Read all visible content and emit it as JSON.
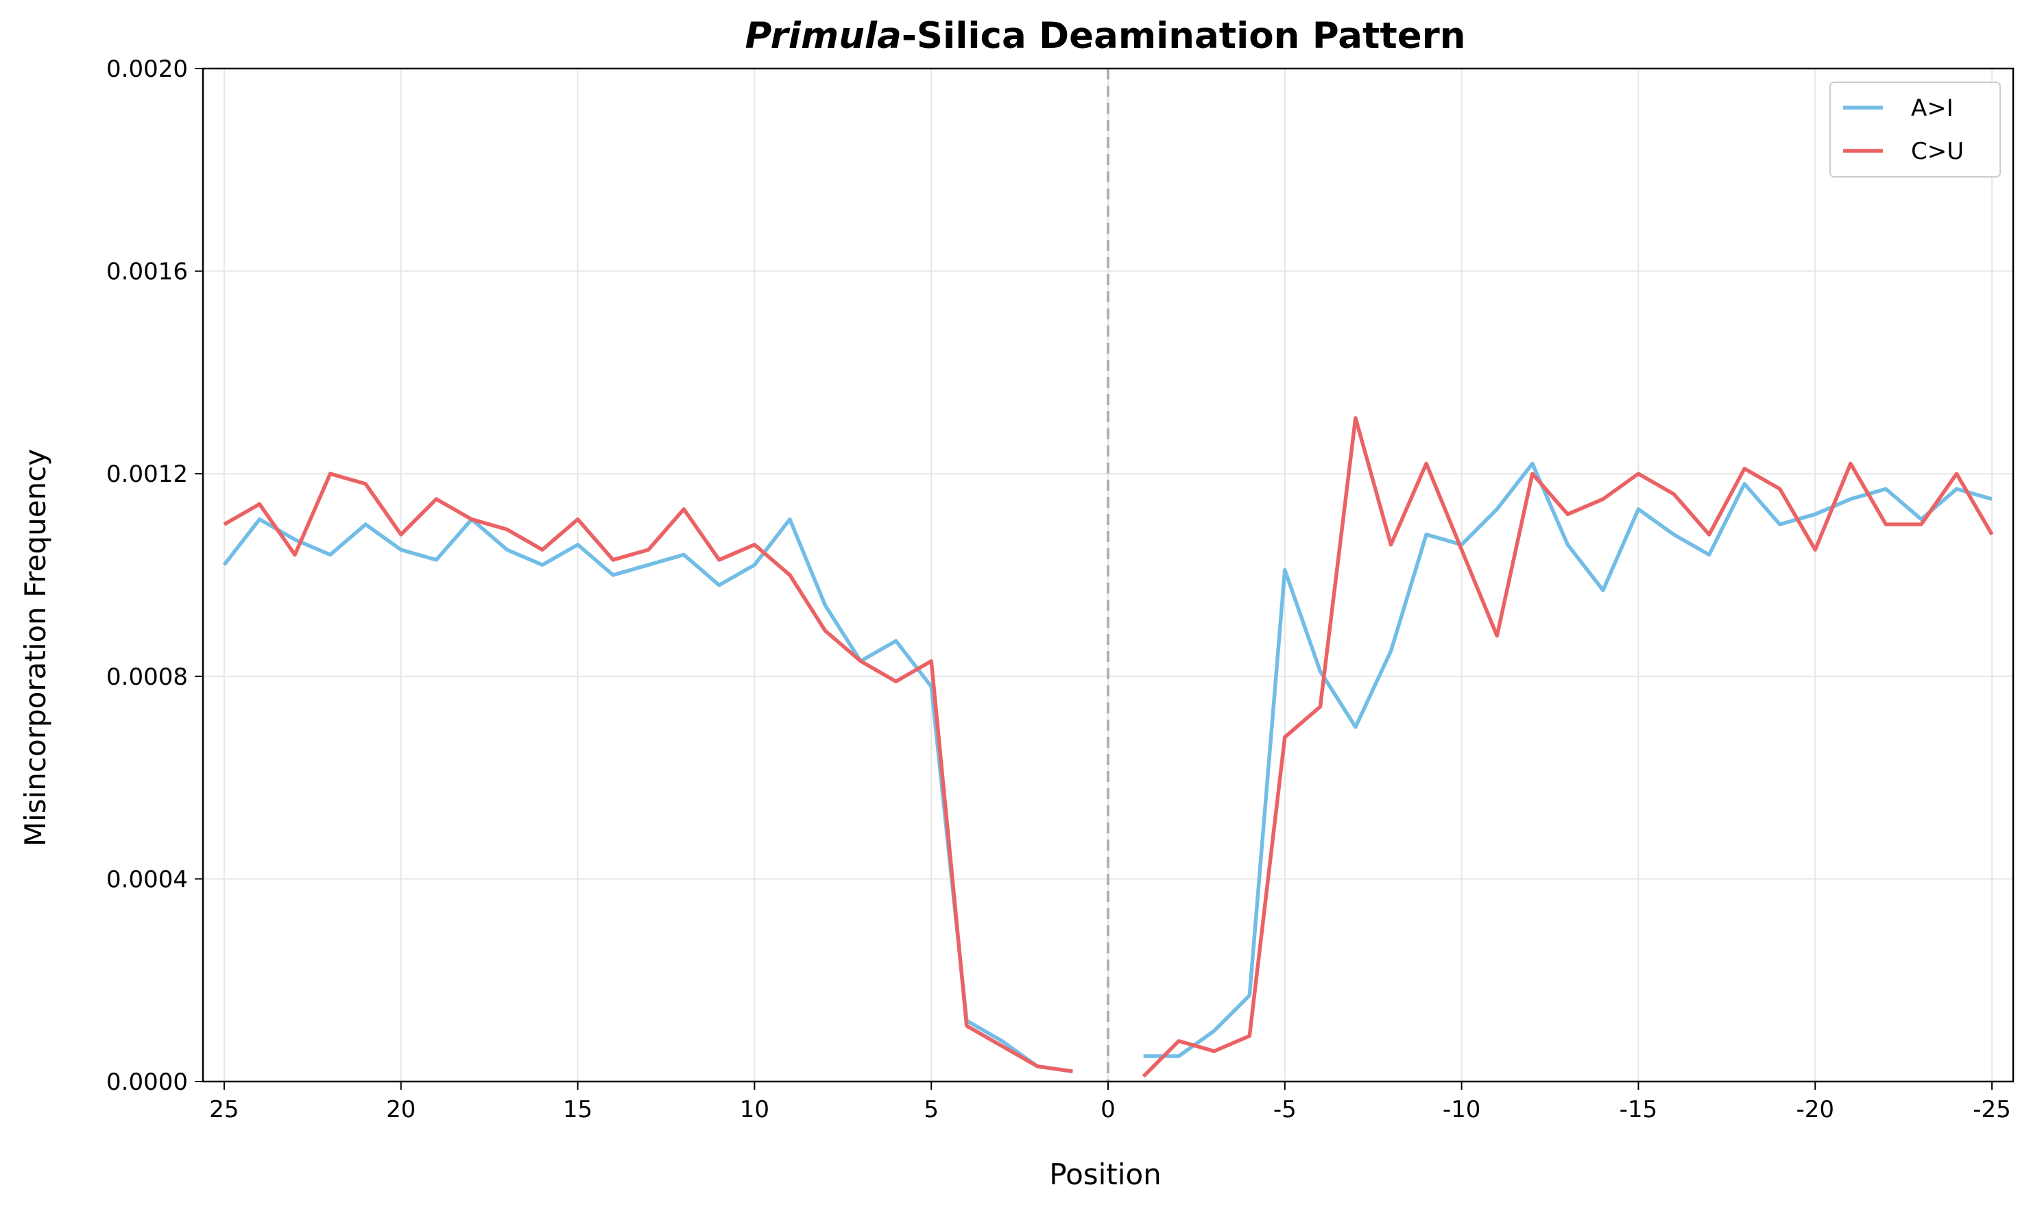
{
  "chart_data": {
    "type": "line",
    "title_italic": "Primula",
    "title_rest": "-Silica Deamination Pattern",
    "xlabel": "Position",
    "ylabel": "Misincorporation Frequency",
    "xlim": [
      25.6,
      -25.6
    ],
    "ylim": [
      0,
      0.002
    ],
    "x_ticks": [
      25,
      20,
      15,
      10,
      5,
      0,
      -5,
      -10,
      -15,
      -20,
      -25
    ],
    "x_tick_labels": [
      "25",
      "20",
      "15",
      "10",
      "5",
      "0",
      "-5",
      "-10",
      "-15",
      "-20",
      "-25"
    ],
    "y_ticks": [
      0,
      0.0004,
      0.0008,
      0.0012,
      0.0016,
      0.002
    ],
    "y_tick_labels": [
      "0.0000",
      "0.0004",
      "0.0008",
      "0.0012",
      "0.0016",
      "0.0020"
    ],
    "grid": true,
    "center_line": {
      "x": 0,
      "style": "dashed",
      "color": "#b0b0b0"
    },
    "legend": {
      "placement": "top-right"
    },
    "series": [
      {
        "name": "A>I",
        "color": "#72bde6",
        "segments": [
          {
            "x": [
              25,
              24,
              23,
              22,
              21,
              20,
              19,
              18,
              17,
              16,
              15,
              14,
              13,
              12,
              11,
              10,
              9,
              8,
              7,
              6,
              5,
              4,
              3,
              2,
              1
            ],
            "y": [
              0.00102,
              0.00111,
              0.00107,
              0.00104,
              0.0011,
              0.00105,
              0.00103,
              0.00111,
              0.00105,
              0.00102,
              0.00106,
              0.001,
              0.00102,
              0.00104,
              0.00098,
              0.00102,
              0.00111,
              0.00094,
              0.00083,
              0.00087,
              0.00078,
              0.00012,
              8e-05,
              3e-05,
              2e-05
            ]
          },
          {
            "x": [
              -1,
              -2,
              -3,
              -4,
              -5,
              -6,
              -7,
              -8,
              -9,
              -10,
              -11,
              -12,
              -13,
              -14,
              -15,
              -16,
              -17,
              -18,
              -19,
              -20,
              -21,
              -22,
              -23,
              -24,
              -25
            ],
            "y": [
              5e-05,
              5e-05,
              0.0001,
              0.00017,
              0.00101,
              0.00081,
              0.0007,
              0.00085,
              0.00108,
              0.00106,
              0.00113,
              0.00122,
              0.00106,
              0.00097,
              0.00113,
              0.00108,
              0.00104,
              0.00118,
              0.0011,
              0.00112,
              0.00115,
              0.00117,
              0.00111,
              0.00117,
              0.00115
            ]
          }
        ]
      },
      {
        "name": "C>U",
        "color": "#eb6264",
        "segments": [
          {
            "x": [
              25,
              24,
              23,
              22,
              21,
              20,
              19,
              18,
              17,
              16,
              15,
              14,
              13,
              12,
              11,
              10,
              9,
              8,
              7,
              6,
              5,
              4,
              3,
              2,
              1
            ],
            "y": [
              0.0011,
              0.00114,
              0.00104,
              0.0012,
              0.00118,
              0.00108,
              0.00115,
              0.00111,
              0.00109,
              0.00105,
              0.00111,
              0.00103,
              0.00105,
              0.00113,
              0.00103,
              0.00106,
              0.001,
              0.00089,
              0.00083,
              0.00079,
              0.00083,
              0.00011,
              7e-05,
              3e-05,
              2e-05
            ]
          },
          {
            "x": [
              -1,
              -2,
              -3,
              -4,
              -5,
              -6,
              -7,
              -8,
              -9,
              -10,
              -11,
              -12,
              -13,
              -14,
              -15,
              -16,
              -17,
              -18,
              -19,
              -20,
              -21,
              -22,
              -23,
              -24,
              -25
            ],
            "y": [
              1e-05,
              8e-05,
              6e-05,
              9e-05,
              0.00068,
              0.00074,
              0.00131,
              0.00106,
              0.00122,
              0.00105,
              0.00088,
              0.0012,
              0.00112,
              0.00115,
              0.0012,
              0.00116,
              0.00108,
              0.00121,
              0.00117,
              0.00105,
              0.00122,
              0.0011,
              0.0011,
              0.0012,
              0.00108
            ]
          }
        ]
      }
    ]
  }
}
